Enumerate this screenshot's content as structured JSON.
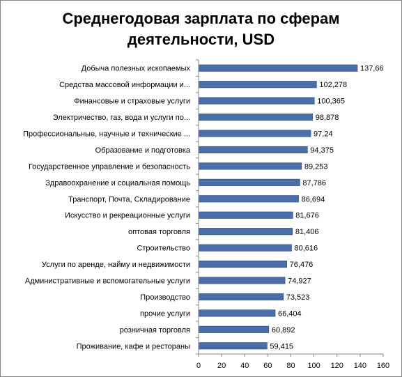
{
  "chart_data": {
    "type": "bar",
    "orientation": "horizontal",
    "title": "Среднегодовая зарплата по сферам деятельности, USD",
    "title_lines": [
      "Среднегодовая зарплата по сферам",
      "деятельности, USD"
    ],
    "categories": [
      "Добыча полезных ископаемых",
      "Средства массовой информации и...",
      "Финансовые и страховые услуги",
      "Электричество, газ, вода и услуги по...",
      "Профессиональные, научные и технические ...",
      "Образование и подготовка",
      "Государственное управление и безопасность",
      "Здравоохранение и социальная помощь",
      "Транспорт, Почта, Складирование",
      "Искусство и рекреационные услуги",
      "оптовая торговля",
      "Строительство",
      "Услуги по аренде, найму и недвижимости",
      "Административные и вспомогательные услуги",
      "Производство",
      "прочие услуги",
      "розничная торговля",
      "Проживание, кафе и рестораны"
    ],
    "values": [
      137.66,
      102.278,
      100.365,
      98.878,
      97.24,
      94.375,
      89.253,
      87.786,
      86.694,
      81.676,
      81.406,
      80.616,
      76.476,
      74.927,
      73.523,
      66.404,
      60.892,
      59.415
    ],
    "value_labels": [
      "137,66",
      "102,278",
      "100,365",
      "98,878",
      "97,24",
      "94,375",
      "89,253",
      "87,786",
      "86,694",
      "81,676",
      "81,406",
      "80,616",
      "76,476",
      "74,927",
      "73,523",
      "66,404",
      "60,892",
      "59,415"
    ],
    "xlim": [
      0,
      160
    ],
    "x_ticks": [
      0,
      20,
      40,
      60,
      80,
      100,
      120,
      140,
      160
    ],
    "grid": false,
    "legend": "none",
    "bar_color": "#4a6ea8",
    "bar_edge_color": "#2f4a78"
  }
}
